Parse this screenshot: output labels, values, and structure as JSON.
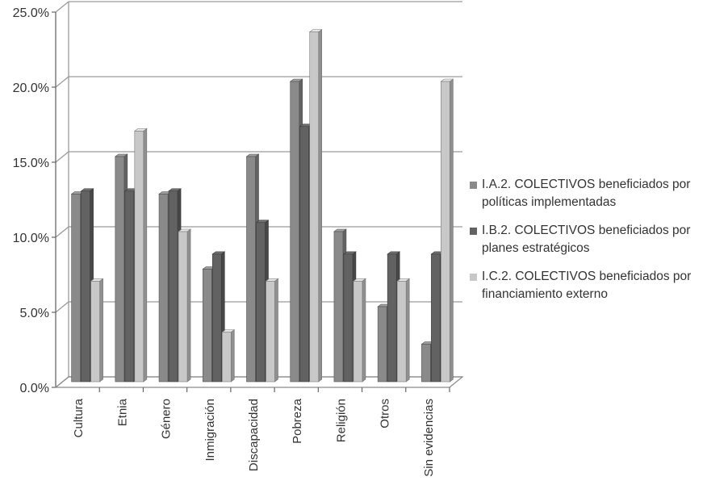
{
  "chart_data": {
    "type": "bar",
    "categories": [
      "Cultura",
      "Etnia",
      "Género",
      "Inmigración",
      "Discapacidad",
      "Pobreza",
      "Religión",
      "Otros",
      "Sin evidencias"
    ],
    "series": [
      {
        "name": "I.A.2. COLECTIVOS beneficiados por políticas implementadas",
        "color": "#8a8a8a",
        "values": [
          12.5,
          15.0,
          12.5,
          7.5,
          15.0,
          20.0,
          10.0,
          5.0,
          2.5
        ]
      },
      {
        "name": "I.B.2. COLECTIVOS beneficiados por planes estratégicos",
        "color": "#626262",
        "values": [
          12.7,
          12.7,
          12.7,
          8.5,
          10.6,
          17.0,
          8.5,
          8.5,
          8.5
        ]
      },
      {
        "name": "I.C.2. COLECTIVOS beneficiados por financiamiento externo",
        "color": "#c8c8c8",
        "values": [
          6.7,
          16.7,
          10.0,
          3.3,
          6.7,
          23.3,
          6.7,
          6.7,
          20.0
        ]
      }
    ],
    "y_ticks": [
      "0.0%",
      "5.0%",
      "10.0%",
      "15.0%",
      "20.0%",
      "25.0%"
    ],
    "ylim": [
      0,
      25
    ],
    "title": "",
    "xlabel": "",
    "ylabel": "",
    "grid": true,
    "legend_position": "right",
    "style": "3d-bar"
  }
}
